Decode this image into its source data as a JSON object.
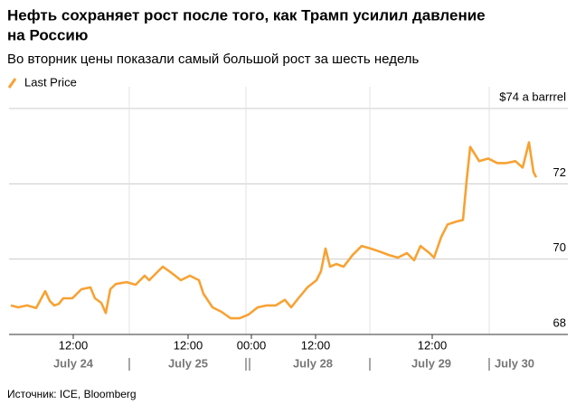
{
  "chart_data": {
    "type": "line",
    "title": [
      "Нефть сохраняет рост после того, как Трамп усилил давление",
      "на Россию"
    ],
    "subtitle": "Во вторник цены показали самый большой рост за шесть недель",
    "source": "Источник: ICE, Bloomberg",
    "xlim": [
      0,
      588
    ],
    "ylim": [
      68,
      74
    ],
    "yticks": [
      68,
      70,
      72,
      {
        "value": 74,
        "label": "$74 a barrrel"
      }
    ],
    "xticks": [
      {
        "value": 71,
        "label": "12:00"
      },
      {
        "value": 198,
        "label": "12:00"
      },
      {
        "value": 268,
        "label": "00:00"
      },
      {
        "value": 339,
        "label": "12:00"
      },
      {
        "value": 468,
        "label": "12:00"
      }
    ],
    "date_ticks": [
      {
        "value": 71,
        "label": "July 24"
      },
      {
        "value": 198,
        "label": "July 25"
      },
      {
        "value": 336,
        "label": "July 28"
      },
      {
        "value": 467,
        "label": "July 29"
      },
      {
        "value": 559,
        "label": "July 30"
      }
    ],
    "xgrid": [
      133,
      262,
      399,
      531
    ],
    "day_breaks": [
      133,
      262,
      266,
      399,
      531
    ],
    "grid": true,
    "series": [
      {
        "name": "Last Price",
        "color": "#f7a234",
        "x": [
          2,
          10,
          20,
          30,
          40,
          45,
          50,
          55,
          60,
          70,
          80,
          90,
          95,
          102,
          107,
          112,
          118,
          130,
          140,
          150,
          155,
          165,
          170,
          180,
          190,
          200,
          210,
          215,
          225,
          235,
          245,
          255,
          265,
          275,
          285,
          295,
          305,
          312,
          320,
          330,
          340,
          345,
          350,
          355,
          362,
          370,
          380,
          390,
          400,
          410,
          420,
          430,
          440,
          448,
          455,
          465,
          470,
          478,
          485,
          495,
          502,
          506,
          510,
          520,
          530,
          540,
          550,
          560,
          568,
          575,
          580,
          583
        ],
        "values": [
          68.77,
          68.72,
          68.77,
          68.7,
          69.15,
          68.89,
          68.77,
          68.81,
          68.96,
          68.96,
          69.2,
          69.25,
          68.96,
          68.84,
          68.57,
          69.2,
          69.34,
          69.39,
          69.32,
          69.56,
          69.44,
          69.68,
          69.8,
          69.63,
          69.44,
          69.56,
          69.44,
          69.08,
          68.72,
          68.6,
          68.43,
          68.43,
          68.53,
          68.72,
          68.77,
          68.77,
          68.92,
          68.72,
          68.96,
          69.25,
          69.44,
          69.68,
          70.28,
          69.8,
          69.87,
          69.8,
          70.11,
          70.35,
          70.28,
          70.2,
          70.11,
          70.04,
          70.16,
          69.97,
          70.35,
          70.16,
          70.04,
          70.59,
          70.92,
          71.0,
          71.04,
          72.07,
          72.98,
          72.6,
          72.67,
          72.55,
          72.55,
          72.6,
          72.43,
          73.1,
          72.31,
          72.17
        ]
      }
    ]
  }
}
